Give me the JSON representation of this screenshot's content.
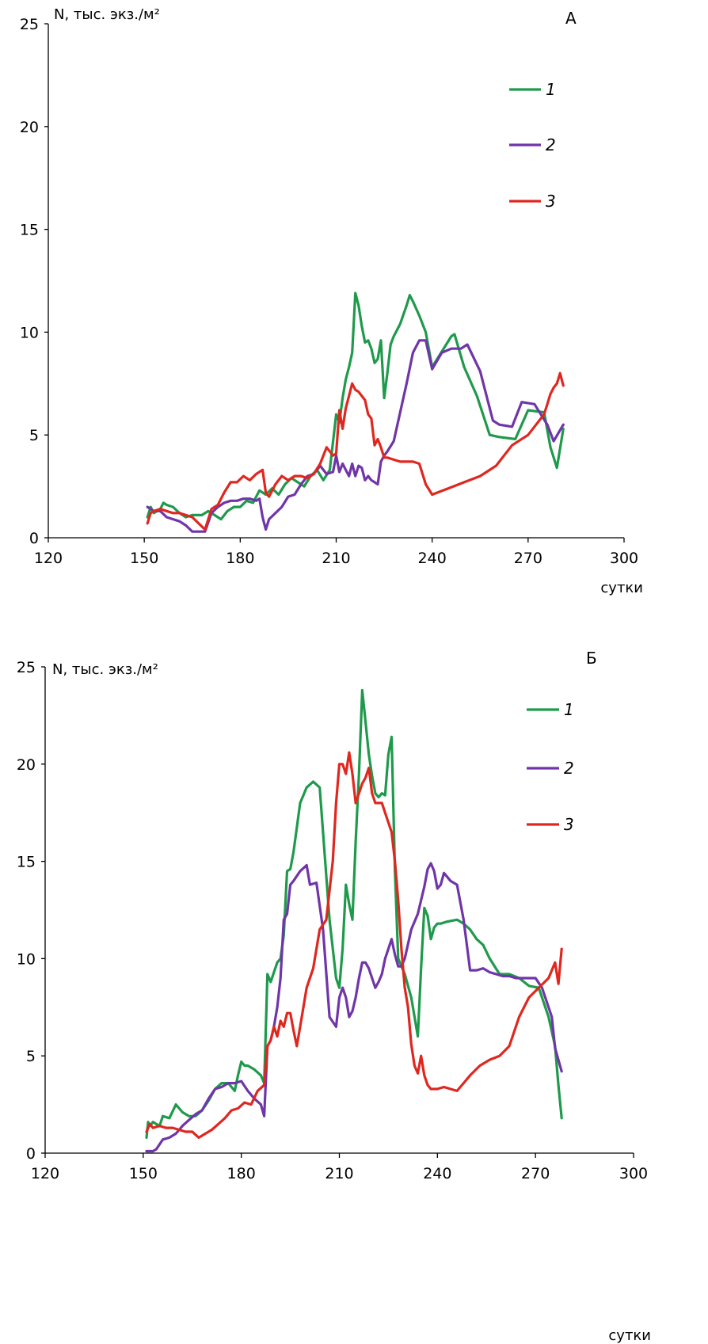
{
  "chart_data": [
    {
      "panel": "A",
      "type": "line",
      "ylabel": "N, тыс. экз./м²",
      "xlabel": "сутки",
      "xlim": [
        120,
        300
      ],
      "ylim": [
        0,
        25
      ],
      "xticks": [
        "120",
        "150",
        "180",
        "210",
        "240",
        "270",
        "300"
      ],
      "yticks": [
        "0",
        "5",
        "10",
        "15",
        "20",
        "25"
      ],
      "legend_position": "top-right",
      "series": [
        {
          "name": "1",
          "color": "#1f9a4c",
          "x": [
            151,
            152,
            153,
            154,
            155,
            156,
            157,
            159,
            161,
            163,
            165,
            168,
            170,
            172,
            174,
            176,
            178,
            180,
            182,
            184,
            186,
            188,
            190,
            192,
            194,
            196,
            198,
            200,
            202,
            204,
            206,
            208,
            210,
            211,
            212,
            213,
            214,
            215,
            216,
            217,
            218,
            219,
            220,
            221,
            222,
            223,
            224,
            225,
            226,
            227,
            228,
            230,
            232,
            233,
            234,
            236,
            238,
            240,
            242,
            244,
            246,
            247,
            250,
            254,
            258,
            261,
            266,
            270,
            275,
            277,
            279,
            281
          ],
          "y": [
            1.0,
            1.5,
            1.2,
            1.3,
            1.4,
            1.7,
            1.6,
            1.5,
            1.2,
            1.0,
            1.1,
            1.1,
            1.3,
            1.1,
            0.9,
            1.3,
            1.5,
            1.5,
            1.8,
            1.7,
            2.3,
            2.1,
            2.4,
            2.1,
            2.6,
            2.9,
            2.7,
            2.5,
            3.0,
            3.3,
            2.8,
            3.3,
            6.0,
            5.6,
            6.8,
            7.7,
            8.3,
            9.0,
            11.9,
            11.3,
            10.3,
            9.5,
            9.6,
            9.2,
            8.5,
            8.7,
            9.6,
            6.8,
            8.0,
            9.4,
            9.8,
            10.4,
            11.3,
            11.8,
            11.5,
            10.8,
            10.0,
            8.3,
            8.8,
            9.3,
            9.8,
            9.9,
            8.3,
            6.9,
            5.0,
            4.9,
            4.8,
            6.2,
            6.1,
            4.4,
            3.4,
            5.3
          ]
        },
        {
          "name": "2",
          "color": "#7035a8",
          "x": [
            151,
            152,
            153,
            155,
            157,
            159,
            161,
            163,
            165,
            167,
            169,
            171,
            173,
            175,
            177,
            179,
            181,
            183,
            185,
            186,
            187,
            188,
            189,
            191,
            193,
            195,
            197,
            199,
            201,
            203,
            205,
            207,
            209,
            210,
            211,
            212,
            213,
            214,
            215,
            216,
            217,
            218,
            219,
            220,
            221,
            222,
            223,
            224,
            225,
            226,
            228,
            230,
            232,
            234,
            236,
            238,
            240,
            243,
            246,
            249,
            251,
            255,
            259,
            261,
            265,
            268,
            272,
            276,
            278,
            281
          ],
          "y": [
            1.5,
            1.4,
            1.3,
            1.3,
            1.0,
            0.9,
            0.8,
            0.6,
            0.3,
            0.3,
            0.3,
            1.2,
            1.5,
            1.7,
            1.8,
            1.8,
            1.9,
            1.9,
            1.8,
            1.9,
            1.0,
            0.4,
            0.9,
            1.2,
            1.5,
            2.0,
            2.1,
            2.6,
            3.0,
            3.1,
            3.5,
            3.1,
            3.2,
            4.0,
            3.2,
            3.6,
            3.3,
            3.0,
            3.6,
            3.0,
            3.5,
            3.4,
            2.8,
            3.0,
            2.8,
            2.7,
            2.6,
            3.7,
            4.0,
            4.2,
            4.7,
            6.1,
            7.5,
            9.0,
            9.6,
            9.6,
            8.2,
            9.0,
            9.2,
            9.2,
            9.4,
            8.1,
            5.7,
            5.5,
            5.4,
            6.6,
            6.5,
            5.5,
            4.7,
            5.5
          ]
        },
        {
          "name": "3",
          "color": "#e0271f",
          "x": [
            151,
            152,
            153,
            155,
            157,
            159,
            161,
            163,
            165,
            167,
            169,
            171,
            173,
            175,
            177,
            179,
            181,
            183,
            185,
            187,
            188,
            189,
            191,
            193,
            195,
            197,
            199,
            201,
            203,
            205,
            207,
            209,
            210,
            211,
            212,
            213,
            214,
            215,
            216,
            217,
            218,
            219,
            220,
            221,
            222,
            223,
            224,
            225,
            226,
            228,
            230,
            232,
            234,
            236,
            238,
            240,
            245,
            250,
            255,
            260,
            265,
            270,
            275,
            276,
            277,
            278,
            279,
            280,
            281
          ],
          "y": [
            0.7,
            1.2,
            1.3,
            1.4,
            1.3,
            1.2,
            1.2,
            1.1,
            1.0,
            0.7,
            0.4,
            1.4,
            1.6,
            2.2,
            2.7,
            2.7,
            3.0,
            2.8,
            3.1,
            3.3,
            2.2,
            2.0,
            2.6,
            3.0,
            2.8,
            3.0,
            3.0,
            2.9,
            3.1,
            3.6,
            4.4,
            4.0,
            4.1,
            6.2,
            5.3,
            6.3,
            6.9,
            7.5,
            7.2,
            7.1,
            6.9,
            6.7,
            6.0,
            5.8,
            4.5,
            4.8,
            4.4,
            3.9,
            3.9,
            3.8,
            3.7,
            3.7,
            3.7,
            3.6,
            2.6,
            2.1,
            2.4,
            2.7,
            3.0,
            3.5,
            4.5,
            5.0,
            6.0,
            6.5,
            7.0,
            7.3,
            7.5,
            8.0,
            7.4
          ]
        }
      ]
    },
    {
      "panel": "Б",
      "type": "line",
      "ylabel": "N, тыс. экз./м²",
      "xlabel": "сутки",
      "xlim": [
        120,
        300
      ],
      "ylim": [
        0,
        25
      ],
      "xticks": [
        "120",
        "150",
        "180",
        "210",
        "240",
        "270",
        "300"
      ],
      "yticks": [
        "0",
        "5",
        "10",
        "15",
        "20",
        "25"
      ],
      "legend_position": "top-right",
      "series": [
        {
          "name": "1",
          "color": "#1f9a4c",
          "x": [
            151,
            151.5,
            152,
            153,
            154,
            155,
            156,
            158,
            160,
            162,
            164,
            166,
            168,
            170,
            172,
            174,
            176,
            178,
            179,
            180,
            181,
            182,
            184,
            186,
            187,
            188,
            189,
            190,
            191,
            192,
            193,
            194,
            195,
            196,
            198,
            200,
            202,
            204,
            205,
            207,
            209,
            210,
            211,
            212,
            213,
            214,
            215,
            216,
            217,
            218,
            219,
            220,
            221,
            222,
            223,
            224,
            225,
            226,
            227,
            228,
            230,
            232,
            234,
            235,
            236,
            237,
            238,
            239,
            240,
            241,
            243,
            246,
            248,
            250,
            252,
            254,
            256,
            259,
            262,
            265,
            268,
            271,
            274,
            276,
            277,
            278
          ],
          "y": [
            0.8,
            1.6,
            1.4,
            1.6,
            1.5,
            1.4,
            1.9,
            1.8,
            2.5,
            2.1,
            1.9,
            1.9,
            2.2,
            2.7,
            3.3,
            3.6,
            3.6,
            3.2,
            4.0,
            4.7,
            4.5,
            4.5,
            4.3,
            4.0,
            3.6,
            9.2,
            8.8,
            9.3,
            9.8,
            10.0,
            11.2,
            14.5,
            14.6,
            15.5,
            18.0,
            18.8,
            19.1,
            18.8,
            16.5,
            12.0,
            9.0,
            8.5,
            10.5,
            13.8,
            12.8,
            12.0,
            16.0,
            19.5,
            23.8,
            22.2,
            20.5,
            19.4,
            18.5,
            18.3,
            18.5,
            18.4,
            20.5,
            21.4,
            14.5,
            10.0,
            9.2,
            8.0,
            6.0,
            9.5,
            12.6,
            12.2,
            11.0,
            11.6,
            11.8,
            11.8,
            11.9,
            12.0,
            11.8,
            11.5,
            11.0,
            10.7,
            10.0,
            9.2,
            9.2,
            9.0,
            8.6,
            8.5,
            7.0,
            5.5,
            3.5,
            1.8
          ]
        },
        {
          "name": "2",
          "color": "#7035a8",
          "x": [
            151,
            153,
            154,
            156,
            158,
            160,
            162,
            164,
            166,
            168,
            170,
            172,
            174,
            176,
            178,
            180,
            182,
            184,
            186,
            187,
            188,
            189,
            190,
            191,
            192,
            193,
            194,
            195,
            196,
            198,
            200,
            201,
            203,
            205,
            207,
            209,
            210,
            211,
            212,
            213,
            214,
            215,
            216,
            217,
            218,
            219,
            220,
            221,
            222,
            223,
            224,
            225,
            226,
            227,
            228,
            229,
            230,
            232,
            234,
            236,
            237,
            238,
            239,
            240,
            241,
            242,
            243,
            244,
            246,
            248,
            250,
            252,
            254,
            256,
            258,
            260,
            262,
            264,
            266,
            268,
            270,
            272,
            275,
            276,
            278
          ],
          "y": [
            0.1,
            0.1,
            0.2,
            0.7,
            0.8,
            1.0,
            1.4,
            1.7,
            2.0,
            2.2,
            2.8,
            3.3,
            3.4,
            3.6,
            3.6,
            3.7,
            3.2,
            2.8,
            2.5,
            1.9,
            5.5,
            5.8,
            6.5,
            7.5,
            9.0,
            12.0,
            12.3,
            13.8,
            14.0,
            14.5,
            14.8,
            13.8,
            13.9,
            11.5,
            7.0,
            6.5,
            8.0,
            8.5,
            8.0,
            7.0,
            7.3,
            8.0,
            9.0,
            9.8,
            9.8,
            9.5,
            9.0,
            8.5,
            8.8,
            9.2,
            10.0,
            10.5,
            11.0,
            10.2,
            9.6,
            9.6,
            10.0,
            11.5,
            12.3,
            13.7,
            14.6,
            14.9,
            14.5,
            13.6,
            13.8,
            14.4,
            14.2,
            14.0,
            13.8,
            12.0,
            9.4,
            9.4,
            9.5,
            9.3,
            9.2,
            9.1,
            9.1,
            9.0,
            9.0,
            9.0,
            9.0,
            8.5,
            7.0,
            5.4,
            4.2
          ]
        },
        {
          "name": "3",
          "color": "#e0271f",
          "x": [
            151,
            152,
            153,
            155,
            157,
            159,
            161,
            163,
            165,
            167,
            169,
            171,
            173,
            175,
            177,
            179,
            181,
            183,
            185,
            187,
            188,
            189,
            190,
            191,
            192,
            193,
            194,
            195,
            196,
            197,
            198,
            200,
            202,
            204,
            206,
            207,
            208,
            209,
            210,
            211,
            212,
            213,
            214,
            215,
            216,
            217,
            218,
            219,
            220,
            221,
            222,
            223,
            224,
            225,
            226,
            227,
            228,
            229,
            230,
            231,
            232,
            233,
            234,
            235,
            236,
            237,
            238,
            240,
            242,
            244,
            246,
            248,
            250,
            253,
            256,
            259,
            262,
            265,
            268,
            271,
            274,
            276,
            277,
            278
          ],
          "y": [
            1.1,
            1.5,
            1.3,
            1.4,
            1.3,
            1.3,
            1.2,
            1.1,
            1.1,
            0.8,
            1.0,
            1.2,
            1.5,
            1.8,
            2.2,
            2.3,
            2.6,
            2.5,
            3.2,
            3.5,
            5.5,
            5.8,
            6.5,
            6.0,
            6.8,
            6.5,
            7.2,
            7.2,
            6.3,
            5.5,
            6.5,
            8.5,
            9.5,
            11.5,
            12.0,
            13.5,
            15.0,
            18.0,
            20.0,
            20.0,
            19.5,
            20.6,
            19.5,
            18.0,
            18.5,
            19.0,
            19.3,
            19.8,
            18.5,
            18.0,
            18.0,
            18.0,
            17.5,
            17.0,
            16.5,
            15.0,
            13.0,
            10.5,
            8.5,
            7.5,
            5.6,
            4.5,
            4.1,
            5.0,
            4.0,
            3.5,
            3.3,
            3.3,
            3.4,
            3.3,
            3.2,
            3.6,
            4.0,
            4.5,
            4.8,
            5.0,
            5.5,
            7.0,
            8.0,
            8.5,
            9.0,
            9.8,
            8.7,
            10.5
          ]
        }
      ]
    }
  ]
}
